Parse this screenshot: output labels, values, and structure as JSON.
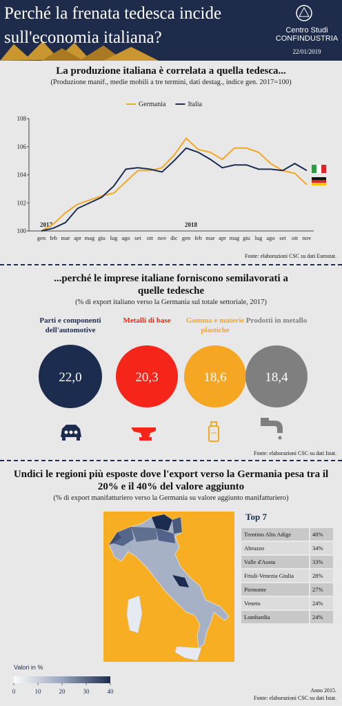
{
  "header": {
    "title": "Perché la frenata tedesca incide sull'economia italiana?",
    "org_line1": "Centro Studi",
    "org_line2": "CONFINDUSTRIA",
    "date": "22/01/2019"
  },
  "chart_data": {
    "type": "line",
    "title": "La produzione italiana è correlata a quella tedesca...",
    "subtitle": "(Produzione manif., medie mobili a tre termini, dati destag., indice gen. 2017=100)",
    "categories": [
      "gen",
      "feb",
      "mar",
      "apr",
      "mag",
      "giu",
      "lug",
      "ago",
      "set",
      "ott",
      "nov",
      "dic",
      "gen",
      "feb",
      "mar",
      "apr",
      "mag",
      "giu",
      "lug",
      "ago",
      "set",
      "ott",
      "nov"
    ],
    "annotations": [
      "2017",
      "2018"
    ],
    "series": [
      {
        "name": "Germania",
        "color": "#f5a623",
        "values": [
          100.0,
          100.5,
          101.3,
          101.9,
          102.2,
          102.5,
          102.7,
          103.5,
          104.3,
          104.3,
          104.5,
          105.4,
          106.6,
          105.8,
          105.6,
          105.1,
          105.9,
          105.9,
          105.6,
          104.8,
          104.3,
          104.1,
          103.3
        ]
      },
      {
        "name": "Italia",
        "color": "#1b2c4f",
        "values": [
          100.0,
          100.2,
          100.6,
          101.6,
          102.0,
          102.4,
          103.2,
          104.4,
          104.5,
          104.4,
          104.2,
          105.0,
          105.9,
          105.6,
          105.1,
          104.5,
          104.7,
          104.7,
          104.4,
          104.4,
          104.3,
          104.8,
          104.3
        ]
      }
    ],
    "ylim": [
      100,
      108
    ],
    "yticks": [
      100,
      102,
      104,
      106,
      108
    ],
    "grid": false,
    "legend": "top",
    "source": "Fonte: elaborazioni CSC su dati Eurostat."
  },
  "exports": {
    "title": "...perché le imprese italiane forniscono semilavorati a quelle tedesche",
    "subtitle": "(% di export italiano verso la Germania sul totale settoriale, 2017)",
    "items": [
      {
        "label": "Parti e componenti dell'automotive",
        "value": "22,0",
        "color": "#1b2c4f"
      },
      {
        "label": "Metalli di base",
        "value": "20,3",
        "color": "#f5251a"
      },
      {
        "label": "Gomma e materie plastiche",
        "value": "18,6",
        "color": "#f5a623"
      },
      {
        "label": "Prodotti in metallo",
        "value": "18,4",
        "color": "#7f7f7f"
      }
    ],
    "source": "Fonte: elaborazioni CSC su dati Istat."
  },
  "regions": {
    "title": "Undici le regioni più esposte dove l'export verso la Germania pesa tra il 20% e il 40% del valore aggiunto",
    "subtitle": "(% di export manifatturiero verso la Germania su valore aggiunto manifatturiero)",
    "top_title": "Top 7",
    "rows": [
      [
        "Trentino Alto Adige",
        "40%"
      ],
      [
        "Abruzzo",
        "34%"
      ],
      [
        "Valle d'Aosta",
        "33%"
      ],
      [
        "Friuli-Venezia Giulia",
        "28%"
      ],
      [
        "Piemonte",
        "27%"
      ],
      [
        "Veneto",
        "24%"
      ],
      [
        "Lombardia",
        "24%"
      ]
    ],
    "legend_title": "Valori in %",
    "legend_ticks": [
      0,
      10,
      20,
      30,
      40
    ],
    "legend_lim": [
      0,
      40
    ],
    "note": "Anno 2015.",
    "source": "Fonte: elaborazioni CSC su dati Istat."
  }
}
